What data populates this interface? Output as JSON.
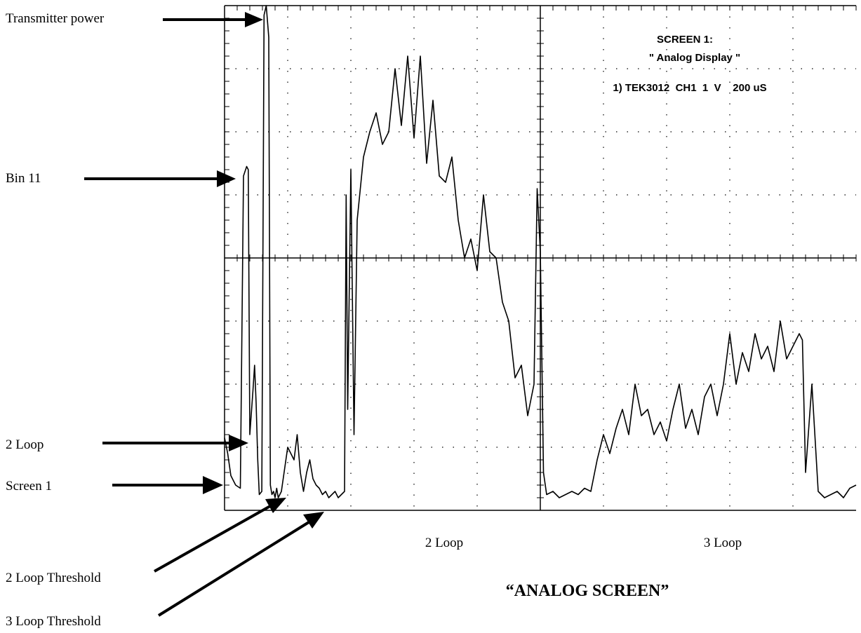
{
  "chart_data": {
    "type": "line",
    "title": "",
    "xlabel": "",
    "ylabel": "",
    "grid": true,
    "grid_divisions": {
      "x": 10,
      "y": 8
    },
    "xlim": [
      0,
      2000
    ],
    "ylim": [
      0,
      8
    ],
    "x_units": "uS",
    "y_units": "V",
    "scope_header": {
      "line1": "SCREEN 1:",
      "line2": "\" Analog Display \"",
      "line3": "1) TEK3012  CH1  1  V    200 uS"
    },
    "series": [
      {
        "color": "#000000",
        "x": [
          0,
          10,
          20,
          35,
          50,
          60,
          70,
          75,
          80,
          90,
          95,
          100,
          105,
          110,
          118,
          125,
          132,
          140,
          145,
          150,
          155,
          160,
          165,
          170,
          175,
          180,
          200,
          220,
          230,
          240,
          250,
          260,
          270,
          280,
          290,
          300,
          310,
          320,
          330,
          340,
          350,
          360,
          370,
          380,
          385,
          390,
          400,
          410,
          420,
          440,
          460,
          480,
          500,
          520,
          540,
          560,
          580,
          600,
          620,
          640,
          660,
          680,
          700,
          720,
          740,
          760,
          780,
          800,
          820,
          840,
          860,
          880,
          900,
          920,
          940,
          960,
          980,
          990,
          1000,
          1010,
          1020,
          1040,
          1060,
          1080,
          1100,
          1120,
          1140,
          1160,
          1180,
          1200,
          1220,
          1240,
          1260,
          1280,
          1300,
          1320,
          1340,
          1360,
          1380,
          1400,
          1420,
          1440,
          1460,
          1480,
          1500,
          1520,
          1540,
          1560,
          1580,
          1600,
          1620,
          1640,
          1660,
          1680,
          1700,
          1720,
          1740,
          1760,
          1780,
          1800,
          1820,
          1830,
          1840,
          1860,
          1880,
          1900,
          1920,
          1940,
          1960,
          1980,
          2000
        ],
        "y": [
          1.15,
          0.9,
          0.55,
          0.4,
          0.35,
          5.3,
          5.45,
          5.4,
          1.2,
          1.9,
          2.3,
          1.7,
          0.8,
          0.25,
          0.3,
          7.85,
          8.0,
          7.5,
          0.4,
          0.25,
          0.3,
          0.2,
          0.35,
          0.2,
          0.25,
          0.3,
          1.0,
          0.8,
          1.2,
          0.6,
          0.3,
          0.6,
          0.8,
          0.5,
          0.4,
          0.35,
          0.25,
          0.3,
          0.2,
          0.25,
          0.3,
          0.2,
          0.25,
          0.3,
          5.0,
          1.6,
          5.4,
          1.2,
          4.6,
          5.6,
          6.0,
          6.3,
          5.8,
          6.0,
          7.0,
          6.1,
          7.2,
          5.9,
          7.2,
          5.5,
          6.5,
          5.3,
          5.2,
          5.6,
          4.6,
          4.0,
          4.3,
          3.8,
          5.0,
          4.1,
          4.0,
          3.3,
          3.0,
          2.1,
          2.3,
          1.5,
          2.0,
          5.1,
          4.1,
          0.6,
          0.25,
          0.3,
          0.2,
          0.25,
          0.3,
          0.25,
          0.35,
          0.3,
          0.8,
          1.2,
          0.9,
          1.3,
          1.6,
          1.2,
          2.0,
          1.5,
          1.6,
          1.2,
          1.4,
          1.1,
          1.6,
          2.0,
          1.3,
          1.6,
          1.2,
          1.8,
          2.0,
          1.5,
          2.0,
          2.8,
          2.0,
          2.5,
          2.2,
          2.8,
          2.4,
          2.6,
          2.2,
          3.0,
          2.4,
          2.6,
          2.8,
          2.7,
          0.6,
          2.0,
          0.3,
          0.2,
          0.25,
          0.3,
          0.2,
          0.35,
          0.4
        ]
      }
    ]
  },
  "annotations": {
    "transmitter_power": "Transmitter power",
    "bin_11": "Bin 11",
    "two_loop_left": "2 Loop",
    "screen_1": "Screen 1",
    "two_loop_threshold": "2 Loop Threshold",
    "three_loop_threshold": "3 Loop Threshold",
    "two_loop_bottom": "2 Loop",
    "three_loop_bottom": "3 Loop",
    "caption": "“ANALOG SCREEN”"
  }
}
